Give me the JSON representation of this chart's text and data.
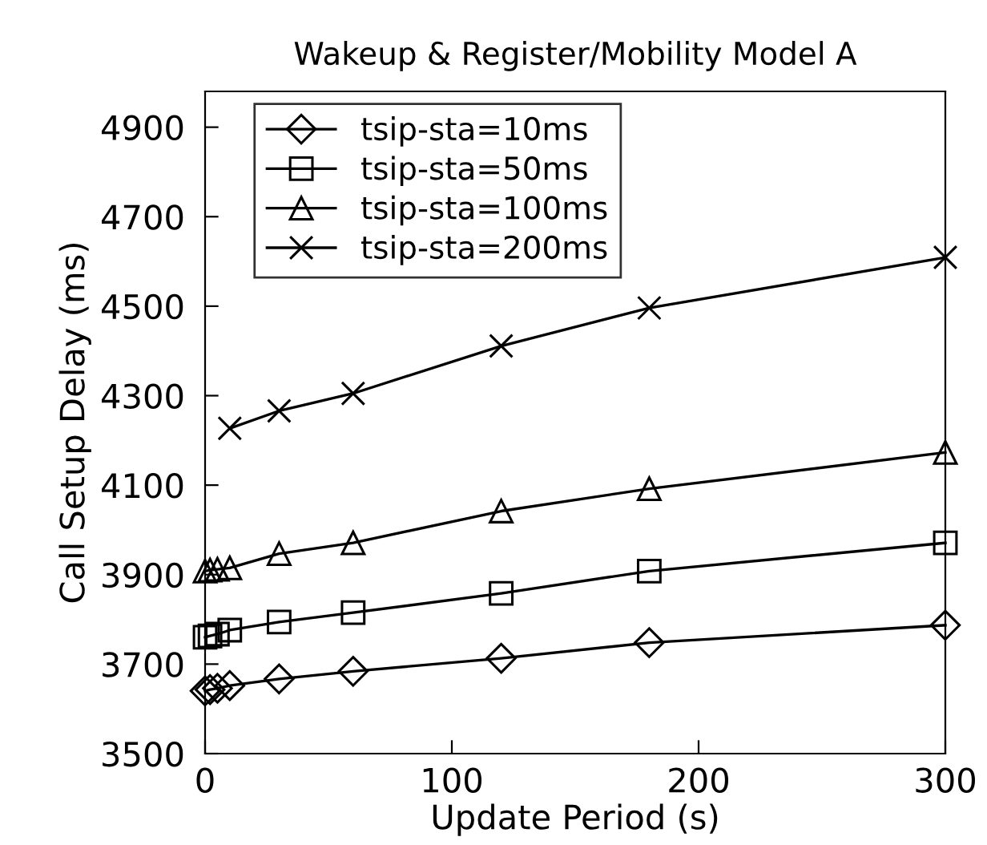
{
  "chart_data": {
    "type": "line",
    "title": "Wakeup & Register/Mobility Model A",
    "xlabel": "Update Period (s)",
    "ylabel": "Call Setup Delay (ms)",
    "xlim": [
      0,
      300
    ],
    "xticks": [
      0,
      100,
      200,
      300
    ],
    "ylim": [
      3500,
      4980
    ],
    "yticks": [
      3500,
      3700,
      3900,
      4100,
      4300,
      4500,
      4700,
      4900
    ],
    "grid": false,
    "legend": "top left",
    "line_style": "solid",
    "series": [
      {
        "name": "tsip-sta=10ms",
        "color": "#000000",
        "marker": "diamond",
        "x": [
          0,
          2,
          5,
          10,
          30,
          60,
          120,
          180,
          300
        ],
        "values": [
          3640,
          3643,
          3646,
          3652,
          3667,
          3684,
          3713,
          3748,
          3787
        ]
      },
      {
        "name": "tsip-sta=50ms",
        "color": "#000000",
        "marker": "square",
        "x": [
          0,
          2,
          5,
          10,
          30,
          60,
          120,
          180,
          300
        ],
        "values": [
          3760,
          3763,
          3767,
          3776,
          3794,
          3815,
          3858,
          3908,
          3971
        ]
      },
      {
        "name": "tsip-sta=100ms",
        "color": "#000000",
        "marker": "triangle",
        "x": [
          0,
          2,
          5,
          10,
          30,
          60,
          120,
          180,
          300
        ],
        "values": [
          3908,
          3910,
          3912,
          3915,
          3947,
          3971,
          4042,
          4092,
          4173
        ]
      },
      {
        "name": "tsip-sta=200ms",
        "color": "#000000",
        "marker": "cross",
        "x": [
          10,
          30,
          60,
          120,
          180,
          300
        ],
        "values": [
          4227,
          4266,
          4305,
          4411,
          4496,
          4609
        ]
      }
    ]
  }
}
